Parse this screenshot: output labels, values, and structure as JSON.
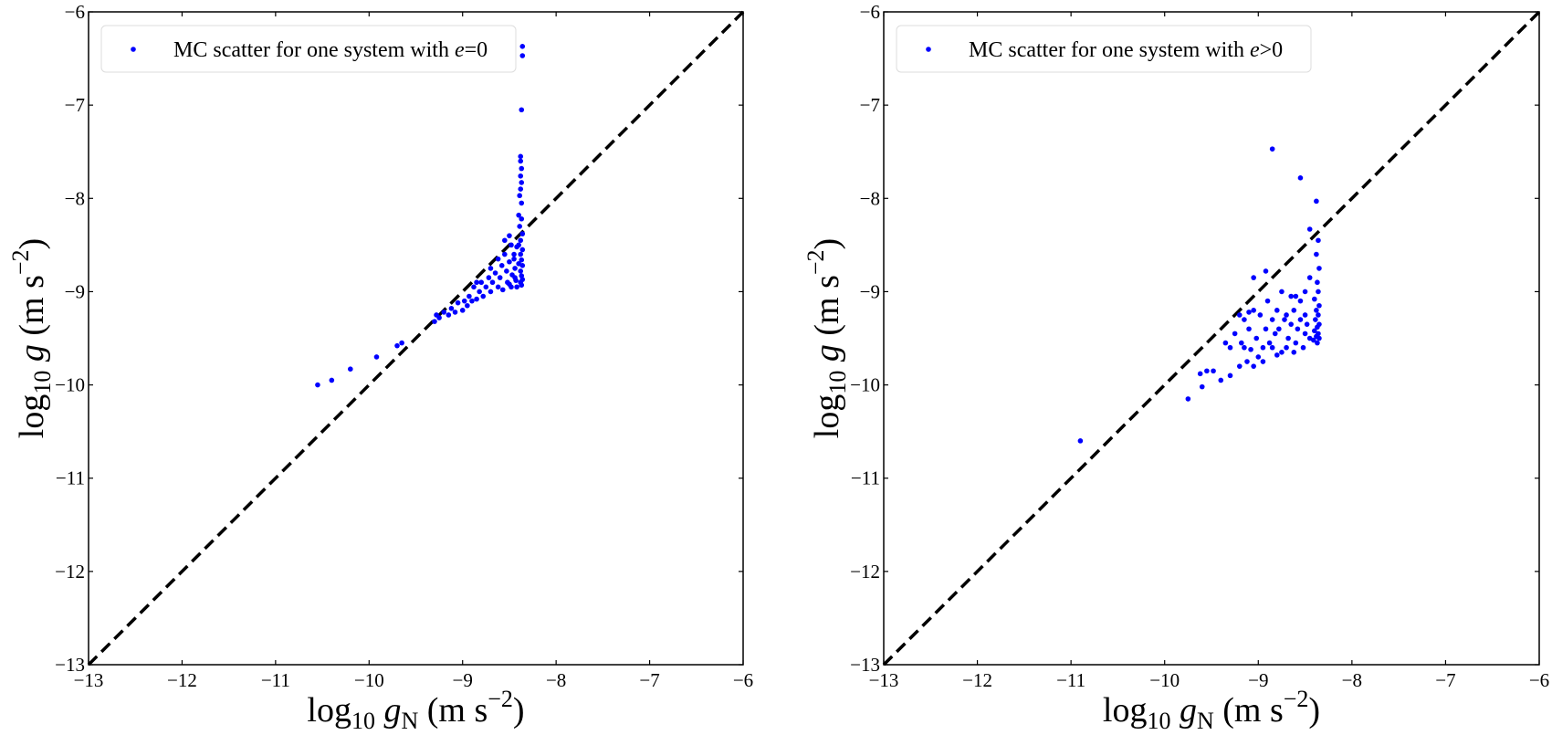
{
  "chart_data": [
    {
      "type": "scatter",
      "xlim": [
        -13,
        -6
      ],
      "ylim": [
        -13,
        -6
      ],
      "xticks": [
        "−13",
        "−12",
        "−11",
        "−10",
        "−9",
        "−8",
        "−7",
        "−6"
      ],
      "yticks": [
        "−13",
        "−12",
        "−11",
        "−10",
        "−9",
        "−8",
        "−7",
        "−6"
      ],
      "xlabel_parts": [
        "log",
        "10",
        " g",
        "N",
        " (m s",
        "−2",
        ")"
      ],
      "ylabel_parts": [
        "log",
        "10",
        " g",
        " (m s",
        "−2",
        ")"
      ],
      "legend": {
        "text": "MC scatter for one system with ",
        "var": "e",
        "rel": "=0",
        "placement": "upper-left"
      },
      "reference_line": {
        "style": "dashed",
        "color": "#000000",
        "relation": "y = x"
      },
      "marker_color": "#0000ff",
      "grid": false,
      "points": [
        [
          -8.36,
          -6.37
        ],
        [
          -8.36,
          -6.47
        ],
        [
          -8.37,
          -7.05
        ],
        [
          -8.38,
          -7.55
        ],
        [
          -8.38,
          -7.6
        ],
        [
          -8.37,
          -7.68
        ],
        [
          -8.38,
          -7.76
        ],
        [
          -8.37,
          -7.83
        ],
        [
          -8.38,
          -7.9
        ],
        [
          -8.39,
          -7.97
        ],
        [
          -8.37,
          -8.05
        ],
        [
          -8.4,
          -8.18
        ],
        [
          -8.37,
          -8.22
        ],
        [
          -8.39,
          -8.3
        ],
        [
          -8.36,
          -8.38
        ],
        [
          -8.38,
          -8.45
        ],
        [
          -8.4,
          -8.5
        ],
        [
          -8.36,
          -8.55
        ],
        [
          -8.38,
          -8.6
        ],
        [
          -8.37,
          -8.66
        ],
        [
          -8.36,
          -8.72
        ],
        [
          -8.38,
          -8.78
        ],
        [
          -8.37,
          -8.83
        ],
        [
          -8.36,
          -8.87
        ],
        [
          -8.38,
          -8.9
        ],
        [
          -8.37,
          -8.93
        ],
        [
          -8.42,
          -8.52
        ],
        [
          -8.45,
          -8.6
        ],
        [
          -8.48,
          -8.5
        ],
        [
          -8.5,
          -8.68
        ],
        [
          -8.44,
          -8.75
        ],
        [
          -8.47,
          -8.82
        ],
        [
          -8.52,
          -8.9
        ],
        [
          -8.43,
          -8.88
        ],
        [
          -8.55,
          -8.6
        ],
        [
          -8.53,
          -8.78
        ],
        [
          -8.58,
          -8.72
        ],
        [
          -8.6,
          -8.85
        ],
        [
          -8.62,
          -8.95
        ],
        [
          -8.48,
          -8.95
        ],
        [
          -8.42,
          -8.95
        ],
        [
          -8.57,
          -8.98
        ],
        [
          -8.65,
          -8.8
        ],
        [
          -8.68,
          -8.9
        ],
        [
          -8.7,
          -9.0
        ],
        [
          -8.72,
          -8.85
        ],
        [
          -8.75,
          -8.95
        ],
        [
          -8.78,
          -9.05
        ],
        [
          -8.8,
          -8.9
        ],
        [
          -8.82,
          -9.0
        ],
        [
          -8.85,
          -9.08
        ],
        [
          -8.88,
          -8.95
        ],
        [
          -8.9,
          -9.1
        ],
        [
          -8.93,
          -9.05
        ],
        [
          -8.95,
          -9.15
        ],
        [
          -8.98,
          -9.1
        ],
        [
          -9.0,
          -9.2
        ],
        [
          -9.05,
          -9.12
        ],
        [
          -9.08,
          -9.22
        ],
        [
          -9.12,
          -9.18
        ],
        [
          -9.15,
          -9.25
        ],
        [
          -9.2,
          -9.22
        ],
        [
          -9.25,
          -9.28
        ],
        [
          -9.3,
          -9.32
        ],
        [
          -9.28,
          -9.25
        ],
        [
          -8.55,
          -8.45
        ],
        [
          -8.5,
          -8.4
        ],
        [
          -8.62,
          -8.65
        ],
        [
          -8.7,
          -8.75
        ],
        [
          -8.85,
          -8.9
        ],
        [
          -8.45,
          -8.65
        ],
        [
          -8.4,
          -8.7
        ],
        [
          -8.44,
          -8.85
        ],
        [
          -8.5,
          -8.92
        ],
        [
          -9.65,
          -9.55
        ],
        [
          -9.7,
          -9.58
        ],
        [
          -9.92,
          -9.7
        ],
        [
          -10.2,
          -9.83
        ],
        [
          -10.4,
          -9.95
        ],
        [
          -10.55,
          -10.0
        ]
      ]
    },
    {
      "type": "scatter",
      "xlim": [
        -13,
        -6
      ],
      "ylim": [
        -13,
        -6
      ],
      "xticks": [
        "−13",
        "−12",
        "−11",
        "−10",
        "−9",
        "−8",
        "−7",
        "−6"
      ],
      "yticks": [
        "−13",
        "−12",
        "−11",
        "−10",
        "−9",
        "−8",
        "−7",
        "−6"
      ],
      "xlabel_parts": [
        "log",
        "10",
        " g",
        "N",
        " (m s",
        "−2",
        ")"
      ],
      "ylabel_parts": [
        "log",
        "10",
        " g",
        " (m s",
        "−2",
        ")"
      ],
      "legend": {
        "text": "MC scatter for one system with ",
        "var": "e",
        "rel": ">0",
        "placement": "upper-left"
      },
      "reference_line": {
        "style": "dashed",
        "color": "#000000",
        "relation": "y = x"
      },
      "marker_color": "#0000ff",
      "grid": false,
      "points": [
        [
          -8.85,
          -7.47
        ],
        [
          -8.55,
          -7.78
        ],
        [
          -8.38,
          -8.03
        ],
        [
          -8.45,
          -8.33
        ],
        [
          -8.36,
          -8.45
        ],
        [
          -8.38,
          -8.6
        ],
        [
          -8.35,
          -8.75
        ],
        [
          -8.37,
          -8.9
        ],
        [
          -8.36,
          -9.0
        ],
        [
          -8.4,
          -9.08
        ],
        [
          -8.35,
          -9.15
        ],
        [
          -8.38,
          -9.2
        ],
        [
          -8.36,
          -9.25
        ],
        [
          -8.39,
          -9.3
        ],
        [
          -8.35,
          -9.35
        ],
        [
          -8.37,
          -9.38
        ],
        [
          -8.4,
          -9.42
        ],
        [
          -8.36,
          -9.45
        ],
        [
          -8.38,
          -9.48
        ],
        [
          -8.35,
          -9.5
        ],
        [
          -8.41,
          -9.52
        ],
        [
          -8.37,
          -9.55
        ],
        [
          -8.45,
          -8.85
        ],
        [
          -8.5,
          -9.0
        ],
        [
          -8.55,
          -9.1
        ],
        [
          -8.5,
          -9.25
        ],
        [
          -8.6,
          -9.05
        ],
        [
          -8.62,
          -9.2
        ],
        [
          -8.65,
          -9.35
        ],
        [
          -8.58,
          -9.4
        ],
        [
          -8.5,
          -9.45
        ],
        [
          -8.45,
          -9.5
        ],
        [
          -8.6,
          -9.55
        ],
        [
          -8.7,
          -9.6
        ],
        [
          -8.75,
          -9.65
        ],
        [
          -8.8,
          -9.68
        ],
        [
          -8.68,
          -9.5
        ],
        [
          -8.72,
          -9.3
        ],
        [
          -8.75,
          -9.0
        ],
        [
          -8.8,
          -9.2
        ],
        [
          -8.82,
          -9.45
        ],
        [
          -8.85,
          -9.3
        ],
        [
          -8.88,
          -9.55
        ],
        [
          -8.9,
          -9.1
        ],
        [
          -8.92,
          -9.4
        ],
        [
          -8.95,
          -9.6
        ],
        [
          -8.98,
          -9.25
        ],
        [
          -9.0,
          -9.7
        ],
        [
          -9.02,
          -9.5
        ],
        [
          -9.05,
          -9.2
        ],
        [
          -9.08,
          -9.62
        ],
        [
          -9.1,
          -9.4
        ],
        [
          -9.12,
          -9.75
        ],
        [
          -9.15,
          -9.3
        ],
        [
          -9.18,
          -9.55
        ],
        [
          -9.2,
          -9.8
        ],
        [
          -9.25,
          -9.45
        ],
        [
          -9.3,
          -9.6
        ],
        [
          -8.7,
          -9.25
        ],
        [
          -8.65,
          -9.05
        ],
        [
          -8.55,
          -9.3
        ],
        [
          -8.48,
          -9.35
        ],
        [
          -8.52,
          -9.6
        ],
        [
          -8.62,
          -9.65
        ],
        [
          -8.78,
          -9.4
        ],
        [
          -8.85,
          -9.6
        ],
        [
          -8.95,
          -9.75
        ],
        [
          -9.05,
          -9.8
        ],
        [
          -9.05,
          -8.85
        ],
        [
          -8.92,
          -8.78
        ],
        [
          -9.2,
          -9.25
        ],
        [
          -9.35,
          -9.55
        ],
        [
          -9.4,
          -9.95
        ],
        [
          -9.3,
          -9.9
        ],
        [
          -9.48,
          -9.85
        ],
        [
          -9.55,
          -9.85
        ],
        [
          -9.62,
          -9.88
        ],
        [
          -9.6,
          -10.02
        ],
        [
          -9.75,
          -10.15
        ],
        [
          -10.9,
          -10.6
        ],
        [
          -9.1,
          -9.22
        ],
        [
          -9.15,
          -9.6
        ]
      ]
    }
  ]
}
